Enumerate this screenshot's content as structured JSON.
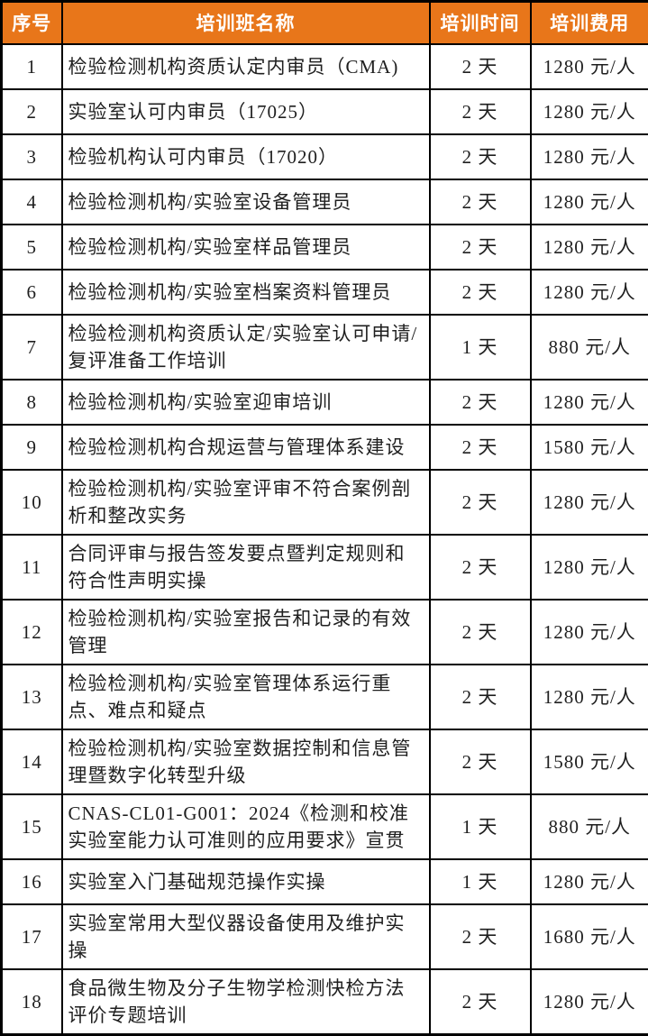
{
  "colors": {
    "header_bg": "#E8761A",
    "header_text": "#FFFFFF",
    "border": "#000000",
    "body_text": "#1F1F1F"
  },
  "table": {
    "columns": [
      "序号",
      "培训班名称",
      "培训时间",
      "培训费用"
    ],
    "rows": [
      {
        "index": "1",
        "name": "检验检测机构资质认定内审员（CMA)",
        "duration": "2 天",
        "fee": "1280 元/人"
      },
      {
        "index": "2",
        "name": "实验室认可内审员（17025）",
        "duration": "2 天",
        "fee": "1280 元/人"
      },
      {
        "index": "3",
        "name": "检验机构认可内审员（17020）",
        "duration": "2 天",
        "fee": "1280 元/人"
      },
      {
        "index": "4",
        "name": "检验检测机构/实验室设备管理员",
        "duration": "2 天",
        "fee": "1280 元/人"
      },
      {
        "index": "5",
        "name": "检验检测机构/实验室样品管理员",
        "duration": "2 天",
        "fee": "1280 元/人"
      },
      {
        "index": "6",
        "name": "检验检测机构/实验室档案资料管理员",
        "duration": "2 天",
        "fee": "1280 元/人"
      },
      {
        "index": "7",
        "name": "检验检测机构资质认定/实验室认可申请/复评准备工作培训",
        "duration": "1 天",
        "fee": "880 元/人"
      },
      {
        "index": "8",
        "name": "检验检测机构/实验室迎审培训",
        "duration": "2 天",
        "fee": "1280 元/人"
      },
      {
        "index": "9",
        "name": "检验检测机构合规运营与管理体系建设",
        "duration": "2 天",
        "fee": "1580 元/人"
      },
      {
        "index": "10",
        "name": "检验检测机构/实验室评审不符合案例剖析和整改实务",
        "duration": "2 天",
        "fee": "1280 元/人"
      },
      {
        "index": "11",
        "name": "合同评审与报告签发要点暨判定规则和符合性声明实操",
        "duration": "2 天",
        "fee": "1280 元/人"
      },
      {
        "index": "12",
        "name": "检验检测机构/实验室报告和记录的有效管理",
        "duration": "2 天",
        "fee": "1280 元/人"
      },
      {
        "index": "13",
        "name": "检验检测机构/实验室管理体系运行重点、难点和疑点",
        "duration": "2 天",
        "fee": "1280 元/人"
      },
      {
        "index": "14",
        "name": "检验检测机构/实验室数据控制和信息管理暨数字化转型升级",
        "duration": "2 天",
        "fee": "1580 元/人"
      },
      {
        "index": "15",
        "name": "CNAS-CL01-G001：2024《检测和校准实验室能力认可准则的应用要求》宣贯",
        "duration": "1 天",
        "fee": "880 元/人"
      },
      {
        "index": "16",
        "name": "实验室入门基础规范操作实操",
        "duration": "1 天",
        "fee": "1280 元/人"
      },
      {
        "index": "17",
        "name": "实验室常用大型仪器设备使用及维护实操",
        "duration": "2 天",
        "fee": "1680 元/人"
      },
      {
        "index": "18",
        "name": "食品微生物及分子生物学检测快检方法评价专题培训",
        "duration": "2 天",
        "fee": "1280 元/人"
      }
    ]
  }
}
